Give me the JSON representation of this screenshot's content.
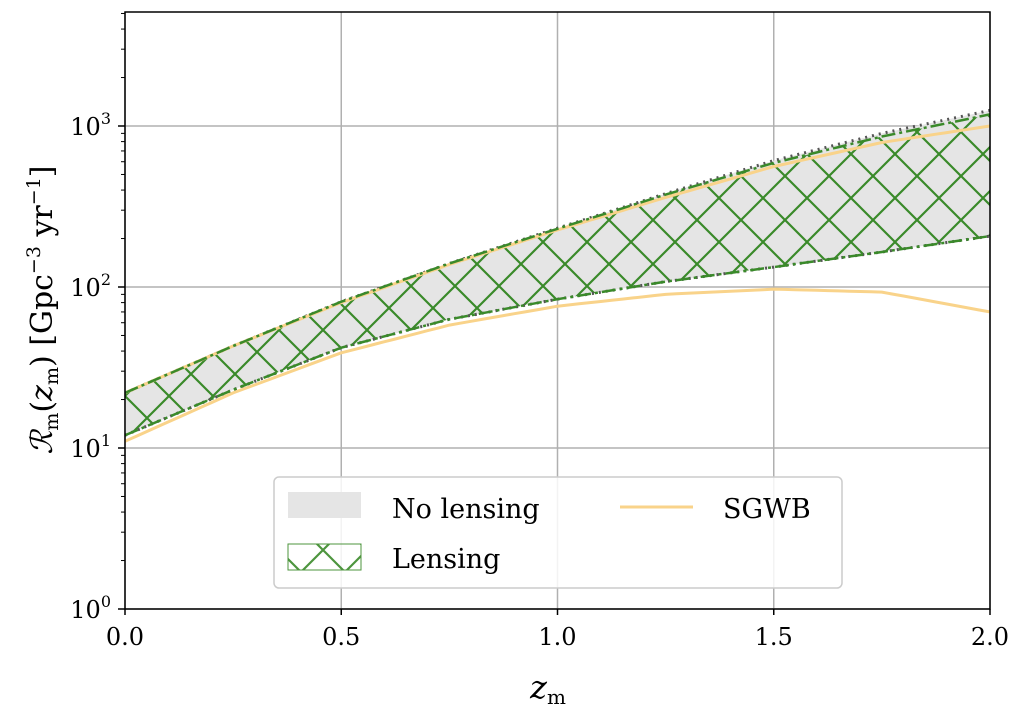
{
  "chart_data": {
    "type": "area",
    "xlabel": "z_m",
    "xlabel_main": "z",
    "xlabel_sub": "m",
    "ylabel": "R_m(z_m) [Gpc^-3 yr^-1]",
    "ylabel_parts": {
      "R": "ℛ",
      "sub": "m",
      "open": "(",
      "z": "z",
      "zsub": "m",
      "close": ")",
      "unit": " [Gpc",
      "exp1": "−3",
      "yr": " yr",
      "exp2": "−1",
      "end": "]"
    },
    "xlim": [
      0,
      2
    ],
    "ylim": [
      1,
      5000
    ],
    "yscale": "log",
    "grid": true,
    "x_ticks": [
      "0.0",
      "0.5",
      "1.0",
      "1.5",
      "2.0"
    ],
    "y_ticks": [
      {
        "base": "10",
        "exp": "0"
      },
      {
        "base": "10",
        "exp": "1"
      },
      {
        "base": "10",
        "exp": "2"
      },
      {
        "base": "10",
        "exp": "3"
      }
    ],
    "x": [
      0,
      0.25,
      0.5,
      0.75,
      1.0,
      1.25,
      1.5,
      1.75,
      2.0
    ],
    "series": [
      {
        "name": "No lensing",
        "kind": "band",
        "color": "#e5e5e5",
        "upper": [
          22,
          43,
          81,
          140,
          232,
          380,
          610,
          900,
          1250
        ],
        "lower": [
          12,
          23,
          42,
          63,
          84,
          108,
          133,
          165,
          207
        ]
      },
      {
        "name": "Lensing",
        "kind": "hatched-band",
        "color": "#3a8a2a",
        "upper": [
          22,
          43,
          81,
          140,
          230,
          375,
          590,
          860,
          1180
        ],
        "lower": [
          12,
          23,
          42,
          63,
          84,
          108,
          133,
          165,
          207
        ]
      },
      {
        "name": "SGWB",
        "kind": "line",
        "color": "#f9d38a",
        "upper": [
          22,
          43,
          80,
          138,
          226,
          360,
          560,
          790,
          1000
        ],
        "lower": [
          11,
          22,
          39,
          58,
          76,
          90,
          97,
          93,
          70
        ]
      }
    ],
    "legend": {
      "placement": "bottom-center",
      "entries": [
        "No lensing",
        "Lensing",
        "SGWB"
      ]
    }
  }
}
